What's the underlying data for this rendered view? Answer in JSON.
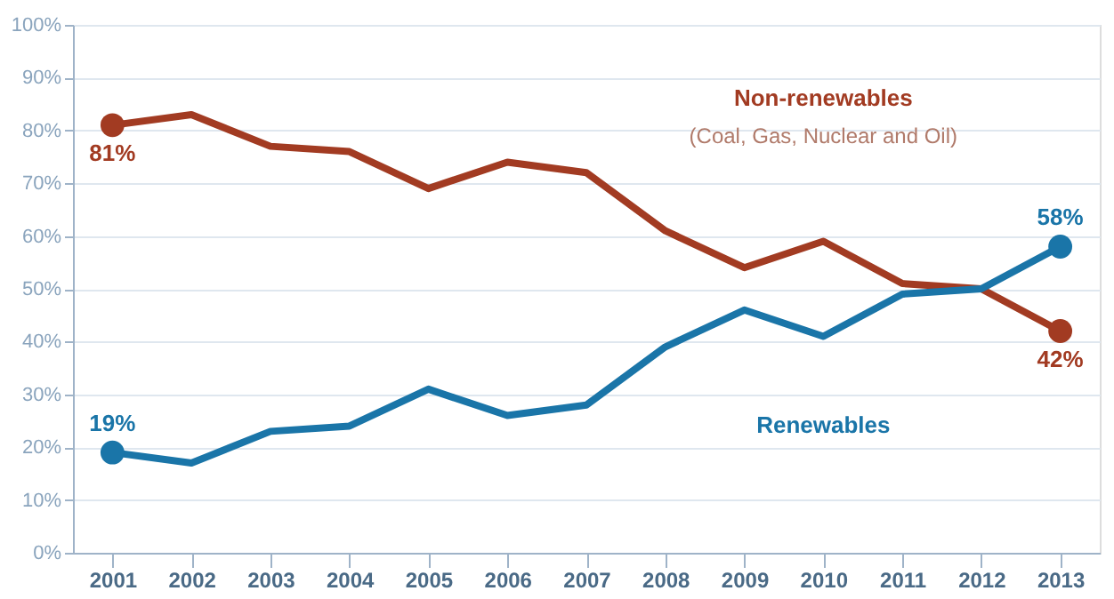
{
  "chart_data": {
    "type": "line",
    "categories": [
      "2001",
      "2002",
      "2003",
      "2004",
      "2005",
      "2006",
      "2007",
      "2008",
      "2009",
      "2010",
      "2011",
      "2012",
      "2013"
    ],
    "series": [
      {
        "name": "Non-renewables",
        "color": "#a23b22",
        "values": [
          81,
          83,
          77,
          76,
          69,
          74,
          72,
          61,
          54,
          59,
          51,
          50,
          42
        ],
        "value_labels": [
          "81%",
          null,
          null,
          null,
          null,
          null,
          null,
          null,
          null,
          null,
          null,
          null,
          "42%"
        ]
      },
      {
        "name": "Renewables",
        "color": "#1a75a8",
        "values": [
          19,
          17,
          23,
          24,
          31,
          26,
          28,
          39,
          46,
          41,
          49,
          50,
          58
        ],
        "value_labels": [
          "19%",
          null,
          null,
          null,
          null,
          null,
          null,
          null,
          null,
          null,
          null,
          null,
          "58%"
        ]
      }
    ],
    "annotations": [
      "(Coal, Gas, Nuclear and Oil)"
    ],
    "ylim": [
      0,
      100
    ],
    "yticks": [
      {
        "value": 0,
        "label": "0%"
      },
      {
        "value": 10,
        "label": "10%"
      },
      {
        "value": 20,
        "label": "20%"
      },
      {
        "value": 30,
        "label": "30%"
      },
      {
        "value": 40,
        "label": "40%"
      },
      {
        "value": 50,
        "label": "50%"
      },
      {
        "value": 60,
        "label": "60%"
      },
      {
        "value": 70,
        "label": "70%"
      },
      {
        "value": 80,
        "label": "80%"
      },
      {
        "value": 90,
        "label": "90%"
      },
      {
        "value": 100,
        "label": "100%"
      }
    ],
    "grid": "y",
    "legend": false
  }
}
